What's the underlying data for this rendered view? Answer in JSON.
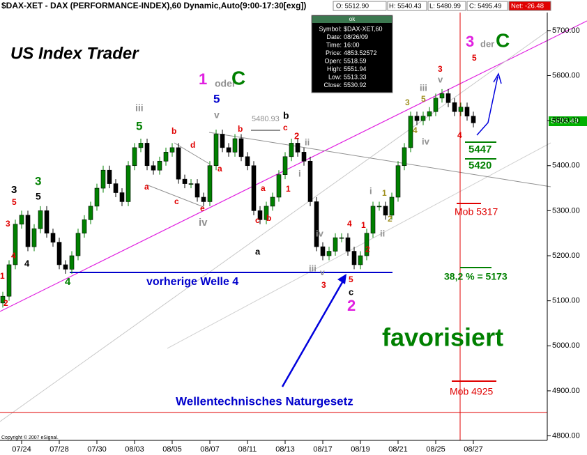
{
  "header": {
    "title": "$DAX-XET - DAX (PERFORMANCE-INDEX),60 Dynamic,Auto(9:00-17:30[exg])",
    "o": "O: 5512.90",
    "h": "H: 5540.43",
    "l": "L: 5480.99",
    "c": "C: 5495.49",
    "net": "Net: -26.48",
    "price_tag": "5495.49",
    "copyright": "Copyright © 2007 eSignal."
  },
  "tooltip": {
    "title": "ok",
    "rows": [
      [
        "Symbol:",
        "$DAX-XET,60"
      ],
      [
        "Date:",
        "08/26/09"
      ],
      [
        "Time:",
        "16:00"
      ],
      [
        "Price:",
        "4853.52572"
      ],
      [
        "Open:",
        "5518.59"
      ],
      [
        "High:",
        "5551.94"
      ],
      [
        "Low:",
        "5513.33"
      ],
      [
        "Close:",
        "5530.92"
      ]
    ]
  },
  "annotations": [
    "US Index Trader",
    "1",
    "oder",
    "C",
    "iii",
    "5",
    "5",
    "v",
    "5480.93",
    "b",
    "b",
    "b",
    "c",
    "2",
    "d",
    "a",
    "c",
    "e",
    "a",
    "a",
    "1",
    "c",
    "b",
    "a",
    "iv",
    "i",
    "ii",
    "3",
    "5",
    "3",
    "4",
    "4",
    "2",
    "1",
    "3",
    "5",
    "4",
    "vorherige Welle 4",
    "iv",
    "iii",
    "v",
    "3",
    "5",
    "c",
    "2",
    "4",
    "1",
    "2",
    "i",
    "1",
    "2",
    "ii",
    "3",
    "5",
    "4",
    "iv",
    "iii",
    "3",
    "v",
    "4",
    "5",
    "3",
    "der",
    "C",
    "5447",
    "5420",
    "Mob 5317",
    "38,2 % = 5173",
    "favorisiert",
    "Mob 4925",
    "Wellentechnisches Naturgesetz"
  ],
  "chart_data": {
    "type": "candlestick",
    "up_color": "#008000",
    "down_color": "#000000",
    "categories": [
      null,
      null,
      null,
      "07/24",
      null,
      null,
      null,
      null,
      null,
      "07/28",
      null,
      null,
      null,
      null,
      null,
      "07/30",
      null,
      null,
      null,
      null,
      null,
      "08/03",
      null,
      null,
      null,
      null,
      null,
      "08/05",
      null,
      null,
      null,
      null,
      null,
      "08/07",
      null,
      null,
      null,
      null,
      null,
      "08/11",
      null,
      null,
      null,
      null,
      null,
      "08/13",
      null,
      null,
      null,
      null,
      null,
      "08/17",
      null,
      null,
      null,
      null,
      null,
      "08/19",
      null,
      null,
      null,
      null,
      null,
      "08/21",
      null,
      null,
      null,
      null,
      null,
      "08/25",
      null,
      null,
      null,
      null,
      null,
      "08/27"
    ],
    "open": [
      5095,
      5110,
      5180,
      5270,
      5290,
      5220,
      5260,
      5300,
      5250,
      5230,
      5180,
      5170,
      5200,
      5250,
      5280,
      5310,
      5350,
      5390,
      5360,
      5340,
      5320,
      5400,
      5440,
      5450,
      5400,
      5390,
      5410,
      5430,
      5440,
      5370,
      5360,
      5360,
      5330,
      5320,
      5400,
      5470,
      5440,
      5430,
      5460,
      5420,
      5400,
      5300,
      5280,
      5310,
      5330,
      5380,
      5420,
      5450,
      5430,
      5410,
      5320,
      5220,
      5200,
      5210,
      5240,
      5240,
      5210,
      5180,
      5200,
      5250,
      5310,
      5310,
      5290,
      5330,
      5400,
      5440,
      5510,
      5500,
      5510,
      5520,
      5550,
      5560,
      5540,
      5520,
      5530,
      5510
    ],
    "high": [
      5120,
      5190,
      5280,
      5300,
      5300,
      5270,
      5310,
      5310,
      5260,
      5240,
      5190,
      5210,
      5260,
      5290,
      5320,
      5360,
      5400,
      5400,
      5370,
      5350,
      5410,
      5450,
      5460,
      5460,
      5410,
      5420,
      5440,
      5450,
      5450,
      5380,
      5370,
      5370,
      5340,
      5410,
      5480,
      5480,
      5450,
      5470,
      5470,
      5430,
      5410,
      5310,
      5320,
      5340,
      5390,
      5430,
      5460,
      5460,
      5440,
      5420,
      5330,
      5230,
      5220,
      5250,
      5250,
      5250,
      5220,
      5210,
      5260,
      5320,
      5320,
      5320,
      5340,
      5410,
      5450,
      5520,
      5520,
      5520,
      5530,
      5560,
      5570,
      5570,
      5550,
      5540,
      5540,
      5520
    ],
    "low": [
      5085,
      5100,
      5170,
      5260,
      5210,
      5210,
      5250,
      5240,
      5220,
      5170,
      5160,
      5160,
      5190,
      5240,
      5270,
      5300,
      5340,
      5350,
      5330,
      5310,
      5310,
      5390,
      5430,
      5390,
      5380,
      5380,
      5400,
      5420,
      5360,
      5350,
      5350,
      5320,
      5310,
      5310,
      5390,
      5430,
      5420,
      5420,
      5410,
      5390,
      5290,
      5270,
      5270,
      5300,
      5320,
      5370,
      5410,
      5420,
      5400,
      5310,
      5210,
      5190,
      5190,
      5200,
      5230,
      5200,
      5170,
      5170,
      5190,
      5240,
      5300,
      5280,
      5280,
      5320,
      5390,
      5430,
      5490,
      5490,
      5500,
      5510,
      5540,
      5530,
      5510,
      5510,
      5500,
      5485
    ],
    "close": [
      5110,
      5180,
      5270,
      5290,
      5220,
      5260,
      5300,
      5250,
      5230,
      5180,
      5170,
      5200,
      5250,
      5280,
      5310,
      5350,
      5390,
      5360,
      5340,
      5320,
      5400,
      5440,
      5450,
      5400,
      5390,
      5410,
      5430,
      5440,
      5370,
      5360,
      5360,
      5330,
      5320,
      5400,
      5470,
      5440,
      5430,
      5460,
      5420,
      5400,
      5300,
      5280,
      5310,
      5330,
      5380,
      5420,
      5450,
      5430,
      5410,
      5320,
      5220,
      5200,
      5210,
      5240,
      5240,
      5210,
      5180,
      5200,
      5250,
      5310,
      5310,
      5290,
      5330,
      5400,
      5440,
      5510,
      5500,
      5510,
      5520,
      5550,
      5560,
      5540,
      5520,
      5530,
      5510,
      5495
    ],
    "ylim": [
      4790,
      5740
    ],
    "yticks": [
      {
        "value": 4800,
        "label": "4800.00"
      },
      {
        "value": 4900,
        "label": "4900.00"
      },
      {
        "value": 5000,
        "label": "5000.00"
      },
      {
        "value": 5100,
        "label": "5100.00"
      },
      {
        "value": 5200,
        "label": "5200.00"
      },
      {
        "value": 5300,
        "label": "5300.00"
      },
      {
        "value": 5400,
        "label": "5400.00"
      },
      {
        "value": 5500,
        "label": "5500.00"
      },
      {
        "value": 5600,
        "label": "5600.00"
      },
      {
        "value": 5700,
        "label": "5700.00"
      }
    ]
  }
}
